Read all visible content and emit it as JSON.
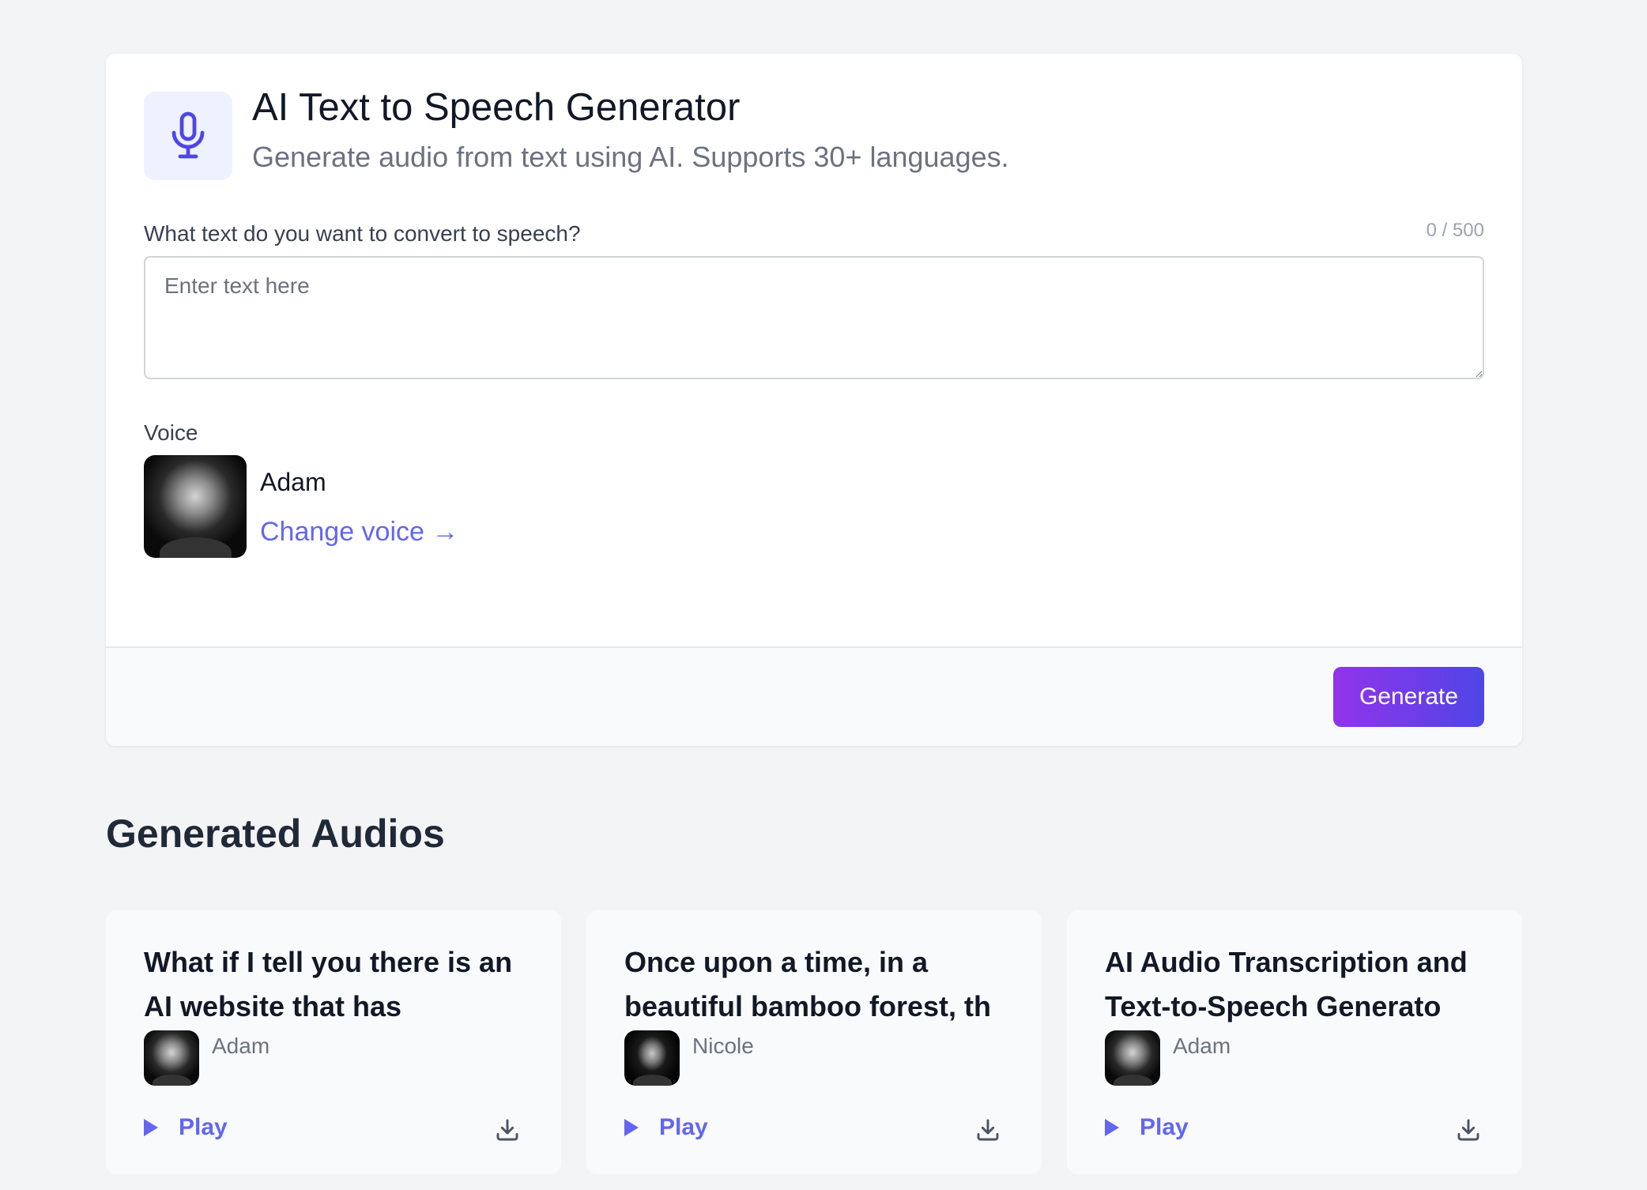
{
  "header": {
    "title": "AI Text to Speech Generator",
    "subtitle": "Generate audio from text using AI. Supports 30+ languages.",
    "icon": "microphone-icon"
  },
  "form": {
    "text_label": "What text do you want to convert to speech?",
    "counter": "0 / 500",
    "placeholder": "Enter text here",
    "value": "",
    "voice_label": "Voice",
    "voice_name": "Adam",
    "change_voice": "Change voice →",
    "generate": "Generate"
  },
  "colors": {
    "accent": "#6366f1",
    "gradient_start": "#9333ea",
    "gradient_end": "#4f46e5",
    "background": "#f3f4f6"
  },
  "generated": {
    "heading": "Generated Audios",
    "items": [
      {
        "title": "What if I tell you there is an AI website that has",
        "voice": "Adam",
        "play": "Play"
      },
      {
        "title": "Once upon a time, in a beautiful bamboo forest, th",
        "voice": "Nicole",
        "play": "Play"
      },
      {
        "title": "AI Audio Transcription and Text-to-Speech Generato",
        "voice": "Adam",
        "play": "Play"
      }
    ]
  }
}
